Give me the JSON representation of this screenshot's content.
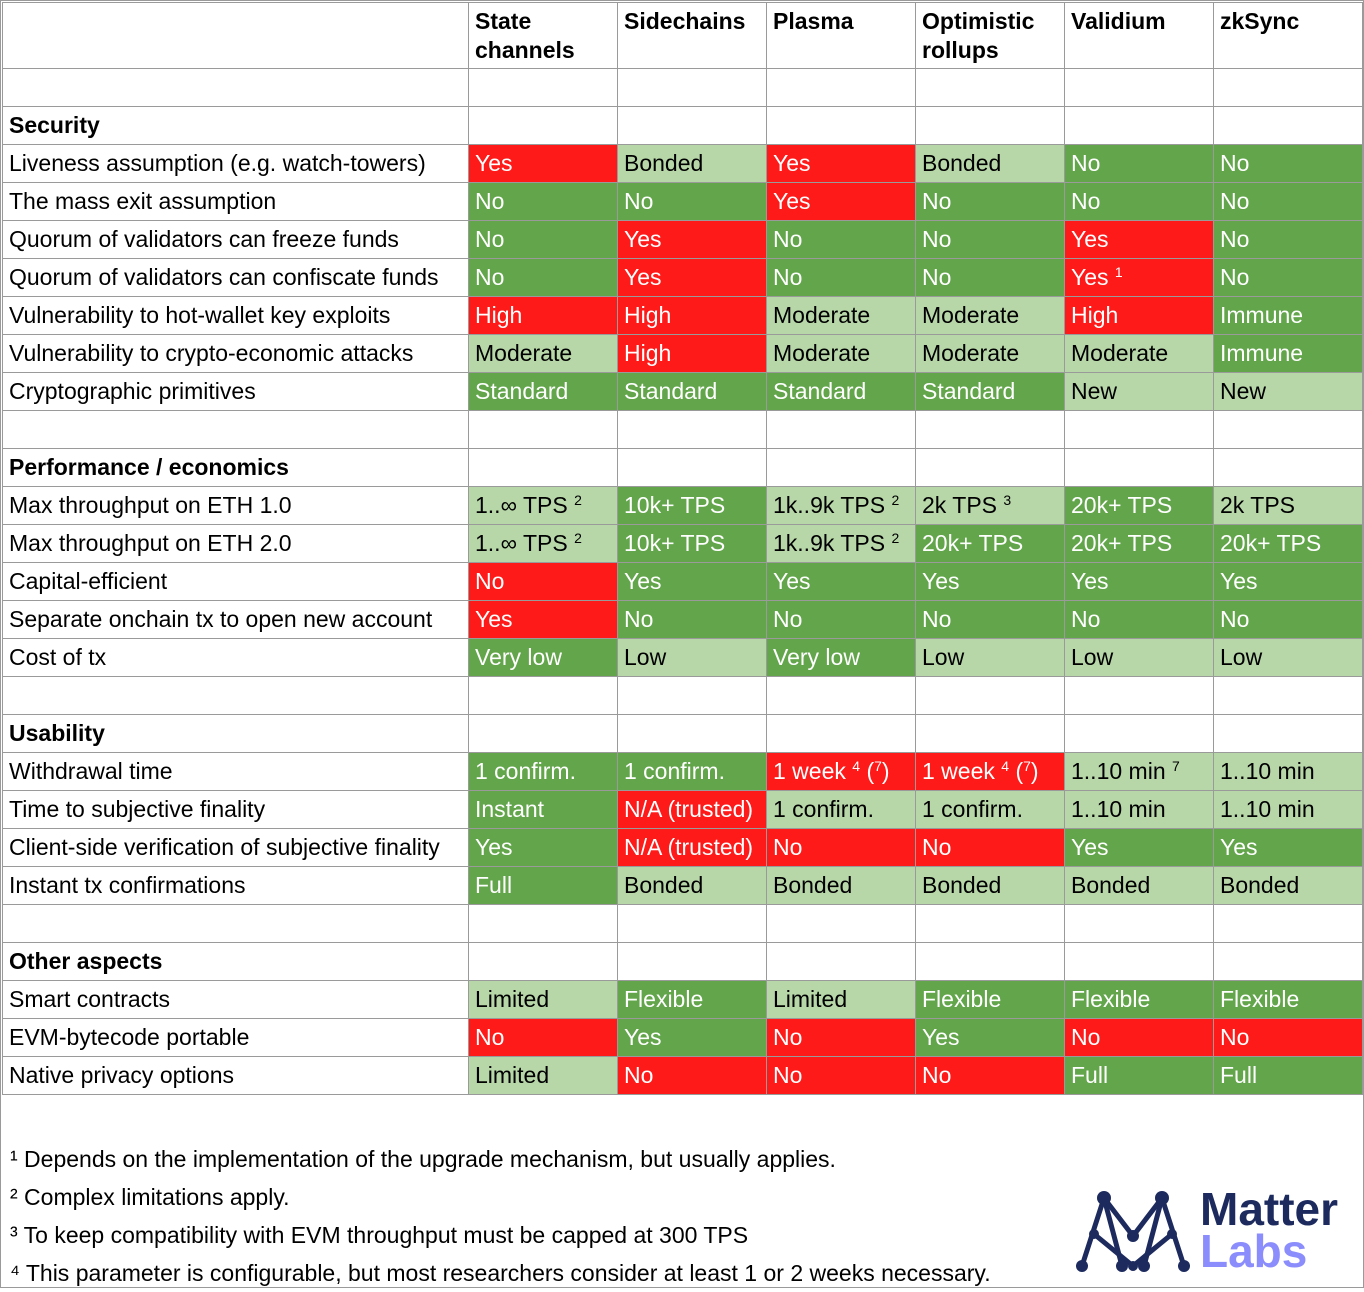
{
  "header": [
    "",
    "State channels",
    "Sidechains",
    "Plasma",
    "Optimistic rollups",
    "Validium",
    "zkSync"
  ],
  "rows": [
    {
      "type": "blank"
    },
    {
      "type": "section",
      "label": "Security"
    },
    {
      "type": "data",
      "label": "Liveness assumption (e.g. watch-towers)",
      "cells": [
        {
          "t": "Yes",
          "c": "red"
        },
        {
          "t": "Bonded",
          "c": "lgreen"
        },
        {
          "t": "Yes",
          "c": "red"
        },
        {
          "t": "Bonded",
          "c": "lgreen"
        },
        {
          "t": "No",
          "c": "green"
        },
        {
          "t": "No",
          "c": "green"
        }
      ]
    },
    {
      "type": "data",
      "label": "The mass exit assumption",
      "cells": [
        {
          "t": "No",
          "c": "green"
        },
        {
          "t": "No",
          "c": "green"
        },
        {
          "t": "Yes",
          "c": "red"
        },
        {
          "t": "No",
          "c": "green"
        },
        {
          "t": "No",
          "c": "green"
        },
        {
          "t": "No",
          "c": "green"
        }
      ]
    },
    {
      "type": "data",
      "label": "Quorum of validators can freeze funds",
      "cells": [
        {
          "t": "No",
          "c": "green"
        },
        {
          "t": "Yes",
          "c": "red"
        },
        {
          "t": "No",
          "c": "green"
        },
        {
          "t": "No",
          "c": "green"
        },
        {
          "t": "Yes",
          "c": "red"
        },
        {
          "t": "No",
          "c": "green"
        }
      ]
    },
    {
      "type": "data",
      "label": "Quorum of validators can confiscate funds",
      "cells": [
        {
          "t": "No",
          "c": "green"
        },
        {
          "t": "Yes",
          "c": "red"
        },
        {
          "t": "No",
          "c": "green"
        },
        {
          "t": "No",
          "c": "green"
        },
        {
          "t": "Yes",
          "c": "red",
          "sup": "1"
        },
        {
          "t": "No",
          "c": "green"
        }
      ]
    },
    {
      "type": "data",
      "label": "Vulnerability to hot-wallet key exploits",
      "cells": [
        {
          "t": "High",
          "c": "red"
        },
        {
          "t": "High",
          "c": "red"
        },
        {
          "t": "Moderate",
          "c": "lgreen"
        },
        {
          "t": "Moderate",
          "c": "lgreen"
        },
        {
          "t": "High",
          "c": "red"
        },
        {
          "t": "Immune",
          "c": "green"
        }
      ]
    },
    {
      "type": "data",
      "label": "Vulnerability to crypto-economic attacks",
      "cells": [
        {
          "t": "Moderate",
          "c": "lgreen"
        },
        {
          "t": "High",
          "c": "red"
        },
        {
          "t": "Moderate",
          "c": "lgreen"
        },
        {
          "t": "Moderate",
          "c": "lgreen"
        },
        {
          "t": "Moderate",
          "c": "lgreen"
        },
        {
          "t": "Immune",
          "c": "green"
        }
      ]
    },
    {
      "type": "data",
      "label": "Cryptographic primitives",
      "cells": [
        {
          "t": "Standard",
          "c": "green"
        },
        {
          "t": "Standard",
          "c": "green"
        },
        {
          "t": "Standard",
          "c": "green"
        },
        {
          "t": "Standard",
          "c": "green"
        },
        {
          "t": "New",
          "c": "lgreen"
        },
        {
          "t": "New",
          "c": "lgreen"
        }
      ]
    },
    {
      "type": "blank"
    },
    {
      "type": "section",
      "label": "Performance / economics"
    },
    {
      "type": "data",
      "label": "Max throughput on ETH 1.0",
      "cells": [
        {
          "t": "1..∞ TPS",
          "c": "lgreen",
          "sup": "2"
        },
        {
          "t": "10k+ TPS",
          "c": "green"
        },
        {
          "t": "1k..9k TPS",
          "c": "lgreen",
          "sup": "2"
        },
        {
          "t": "2k TPS",
          "c": "lgreen",
          "sup": "3"
        },
        {
          "t": "20k+ TPS",
          "c": "green"
        },
        {
          "t": "2k TPS",
          "c": "lgreen"
        }
      ]
    },
    {
      "type": "data",
      "label": "Max throughput on ETH 2.0",
      "cells": [
        {
          "t": "1..∞ TPS",
          "c": "lgreen",
          "sup": "2"
        },
        {
          "t": "10k+ TPS",
          "c": "green"
        },
        {
          "t": "1k..9k TPS",
          "c": "lgreen",
          "sup": "2"
        },
        {
          "t": "20k+ TPS",
          "c": "green"
        },
        {
          "t": "20k+ TPS",
          "c": "green"
        },
        {
          "t": "20k+ TPS",
          "c": "green"
        }
      ]
    },
    {
      "type": "data",
      "label": "Capital-efficient",
      "cells": [
        {
          "t": "No",
          "c": "red"
        },
        {
          "t": "Yes",
          "c": "green"
        },
        {
          "t": "Yes",
          "c": "green"
        },
        {
          "t": "Yes",
          "c": "green"
        },
        {
          "t": "Yes",
          "c": "green"
        },
        {
          "t": "Yes",
          "c": "green"
        }
      ]
    },
    {
      "type": "data",
      "label": "Separate onchain tx to open new account",
      "cells": [
        {
          "t": "Yes",
          "c": "red"
        },
        {
          "t": "No",
          "c": "green"
        },
        {
          "t": "No",
          "c": "green"
        },
        {
          "t": "No",
          "c": "green"
        },
        {
          "t": "No",
          "c": "green"
        },
        {
          "t": "No",
          "c": "green"
        }
      ]
    },
    {
      "type": "data",
      "label": "Cost of tx",
      "cells": [
        {
          "t": "Very low",
          "c": "green"
        },
        {
          "t": "Low",
          "c": "lgreen"
        },
        {
          "t": "Very low",
          "c": "green"
        },
        {
          "t": "Low",
          "c": "lgreen"
        },
        {
          "t": "Low",
          "c": "lgreen"
        },
        {
          "t": "Low",
          "c": "lgreen"
        }
      ]
    },
    {
      "type": "blank"
    },
    {
      "type": "section",
      "label": "Usability"
    },
    {
      "type": "data",
      "label": "Withdrawal time",
      "cells": [
        {
          "t": "1 confirm.",
          "c": "green"
        },
        {
          "t": "1 confirm.",
          "c": "green"
        },
        {
          "t": "1 week",
          "c": "red",
          "sup": "4",
          "post": " (",
          "sup2": "7",
          "post2": ")"
        },
        {
          "t": "1 week",
          "c": "red",
          "sup": "4",
          "post": " (",
          "sup2": "7",
          "post2": ")"
        },
        {
          "t": "1..10 min",
          "c": "lgreen",
          "sup": "7"
        },
        {
          "t": "1..10 min",
          "c": "lgreen"
        }
      ]
    },
    {
      "type": "data",
      "label": "Time to subjective finality",
      "cells": [
        {
          "t": "Instant",
          "c": "green"
        },
        {
          "t": "N/A (trusted)",
          "c": "red"
        },
        {
          "t": "1 confirm.",
          "c": "lgreen"
        },
        {
          "t": "1 confirm.",
          "c": "lgreen"
        },
        {
          "t": "1..10 min",
          "c": "lgreen"
        },
        {
          "t": "1..10 min",
          "c": "lgreen"
        }
      ]
    },
    {
      "type": "data",
      "label": "Client-side verification of subjective finality",
      "cells": [
        {
          "t": "Yes",
          "c": "green"
        },
        {
          "t": "N/A (trusted)",
          "c": "red"
        },
        {
          "t": "No",
          "c": "red"
        },
        {
          "t": "No",
          "c": "red"
        },
        {
          "t": "Yes",
          "c": "green"
        },
        {
          "t": "Yes",
          "c": "green"
        }
      ]
    },
    {
      "type": "data",
      "label": "Instant tx confirmations",
      "cells": [
        {
          "t": "Full",
          "c": "green"
        },
        {
          "t": "Bonded",
          "c": "lgreen"
        },
        {
          "t": "Bonded",
          "c": "lgreen"
        },
        {
          "t": "Bonded",
          "c": "lgreen"
        },
        {
          "t": "Bonded",
          "c": "lgreen"
        },
        {
          "t": "Bonded",
          "c": "lgreen"
        }
      ]
    },
    {
      "type": "blank"
    },
    {
      "type": "section",
      "label": "Other aspects"
    },
    {
      "type": "data",
      "label": "Smart contracts",
      "cells": [
        {
          "t": "Limited",
          "c": "lgreen"
        },
        {
          "t": "Flexible",
          "c": "green"
        },
        {
          "t": "Limited",
          "c": "lgreen"
        },
        {
          "t": "Flexible",
          "c": "green"
        },
        {
          "t": "Flexible",
          "c": "green"
        },
        {
          "t": "Flexible",
          "c": "green"
        }
      ]
    },
    {
      "type": "data",
      "label": "EVM-bytecode portable",
      "cells": [
        {
          "t": "No",
          "c": "red"
        },
        {
          "t": "Yes",
          "c": "green"
        },
        {
          "t": "No",
          "c": "red"
        },
        {
          "t": "Yes",
          "c": "green"
        },
        {
          "t": "No",
          "c": "red"
        },
        {
          "t": "No",
          "c": "red"
        }
      ]
    },
    {
      "type": "data",
      "label": "Native privacy options",
      "cells": [
        {
          "t": "Limited",
          "c": "lgreen"
        },
        {
          "t": "No",
          "c": "red"
        },
        {
          "t": "No",
          "c": "red"
        },
        {
          "t": "No",
          "c": "red"
        },
        {
          "t": "Full",
          "c": "green"
        },
        {
          "t": "Full",
          "c": "green"
        }
      ]
    }
  ],
  "footnotes": [
    "¹ Depends on the implementation of the upgrade mechanism, but usually applies.",
    "² Complex limitations apply.",
    "³ To keep compatibility with EVM throughput must be capped at 300 TPS",
    "⁴ This parameter is configurable, but most researchers consider at least 1 or 2 weeks necessary."
  ],
  "logo": {
    "word1": "Matter",
    "word2": "Labs",
    "mark": "matter-labs-logo-icon"
  },
  "colors": {
    "red": "#ff1a1a",
    "green": "#62a54a",
    "light_green": "#b7d7a8",
    "logo_dark": "#1c2a5e",
    "logo_light": "#8c8dfc"
  }
}
